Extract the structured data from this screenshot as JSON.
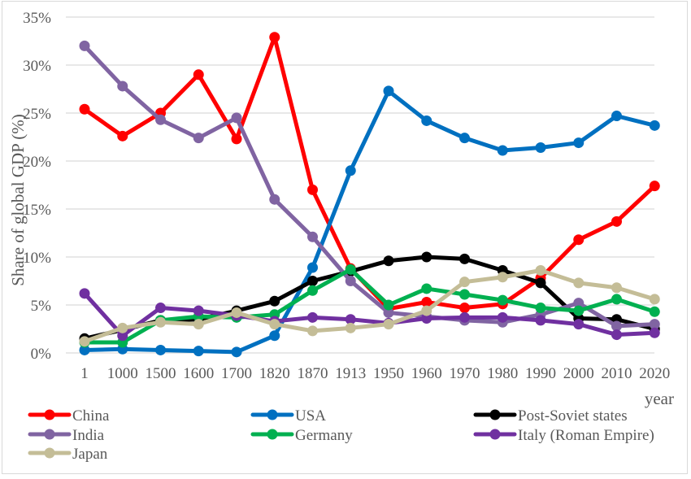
{
  "chart_data": {
    "type": "line",
    "title": "",
    "xlabel": "year",
    "ylabel": "Share of global GDP (%)",
    "ylim": [
      0,
      35
    ],
    "yticks": [
      "0%",
      "5%",
      "10%",
      "15%",
      "20%",
      "25%",
      "30%",
      "35%"
    ],
    "ytick_values": [
      0,
      5,
      10,
      15,
      20,
      25,
      30,
      35
    ],
    "grid": true,
    "legend_position": "bottom",
    "categories": [
      "1",
      "1000",
      "1500",
      "1600",
      "1700",
      "1820",
      "1870",
      "1913",
      "1950",
      "1960",
      "1970",
      "1980",
      "1990",
      "2000",
      "2010",
      "2020"
    ],
    "series": [
      {
        "name": "China",
        "color": "#ff0000",
        "values": [
          25.4,
          22.6,
          25.0,
          29.0,
          22.3,
          32.9,
          17.0,
          8.8,
          4.6,
          5.3,
          4.7,
          5.1,
          7.8,
          11.8,
          13.7,
          17.4
        ]
      },
      {
        "name": "USA",
        "color": "#0070c0",
        "values": [
          0.3,
          0.4,
          0.3,
          0.2,
          0.1,
          1.8,
          8.9,
          19.0,
          27.3,
          24.2,
          22.4,
          21.1,
          21.4,
          21.9,
          24.7,
          23.7
        ]
      },
      {
        "name": "Post-Soviet states",
        "color": "#000000",
        "values": [
          1.5,
          2.4,
          3.4,
          3.5,
          4.4,
          5.4,
          7.5,
          8.5,
          9.6,
          10.0,
          9.8,
          8.6,
          7.3,
          3.6,
          3.5,
          2.5
        ]
      },
      {
        "name": "India",
        "color": "#8064a2",
        "values": [
          32.0,
          27.8,
          24.3,
          22.4,
          24.5,
          16.0,
          12.1,
          7.5,
          4.2,
          3.8,
          3.4,
          3.2,
          4.0,
          5.2,
          2.8,
          3.0
        ]
      },
      {
        "name": "Germany",
        "color": "#00b050",
        "values": [
          1.1,
          1.1,
          3.4,
          3.8,
          3.7,
          4.0,
          6.5,
          8.7,
          5.0,
          6.7,
          6.1,
          5.5,
          4.7,
          4.4,
          5.6,
          4.3
        ]
      },
      {
        "name": "Italy (Roman Empire)",
        "color": "#7030a0",
        "values": [
          6.2,
          1.8,
          4.7,
          4.4,
          3.9,
          3.3,
          3.7,
          3.5,
          3.1,
          3.6,
          3.7,
          3.7,
          3.4,
          3.0,
          1.9,
          2.1
        ]
      },
      {
        "name": "Japan",
        "color": "#c4bd97",
        "values": [
          1.2,
          2.6,
          3.2,
          3.0,
          4.2,
          3.0,
          2.3,
          2.6,
          3.0,
          4.4,
          7.4,
          7.9,
          8.6,
          7.3,
          6.8,
          5.6
        ]
      }
    ]
  }
}
